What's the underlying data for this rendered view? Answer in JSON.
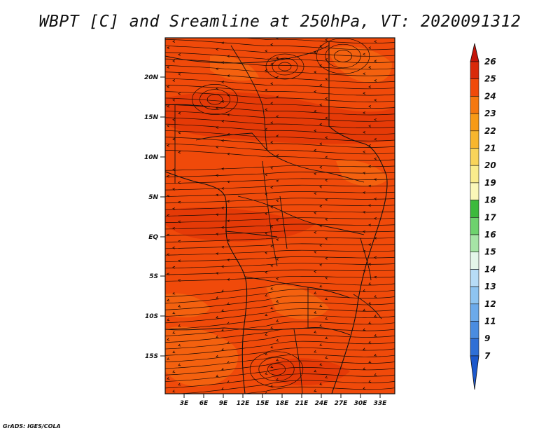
{
  "title": "WBPT [C] and Sreamline at 250hPa, VT: 2020091312",
  "credit": "GrADS: IGES/COLA",
  "map": {
    "lat_ticks": [
      "20N",
      "15N",
      "10N",
      "5N",
      "EQ",
      "5S",
      "10S",
      "15S"
    ],
    "lon_ticks": [
      "3E",
      "6E",
      "9E",
      "12E",
      "15E",
      "18E",
      "21E",
      "24E",
      "27E",
      "30E",
      "33E"
    ],
    "field_colors": {
      "base": "#f04a0a",
      "dark": "#e03306",
      "light": "#f56a12"
    },
    "streamline_color": "#1a0a05",
    "boundary_color": "#111111"
  },
  "colorbar": {
    "labels": [
      "26",
      "25",
      "24",
      "23",
      "22",
      "21",
      "20",
      "19",
      "18",
      "17",
      "16",
      "15",
      "14",
      "13",
      "12",
      "11",
      "9",
      "7"
    ],
    "colors": [
      "#c4150a",
      "#d92a0a",
      "#f04a0a",
      "#f5780f",
      "#f79a16",
      "#f8b62e",
      "#f9d45a",
      "#faec8c",
      "#fbf7b8",
      "#3cba3c",
      "#6ed26e",
      "#a6e4a6",
      "#e4f6ea",
      "#b7dcf6",
      "#8ec4f0",
      "#6caaea",
      "#4a8ce0",
      "#2f6fd6",
      "#1c58cc"
    ]
  }
}
